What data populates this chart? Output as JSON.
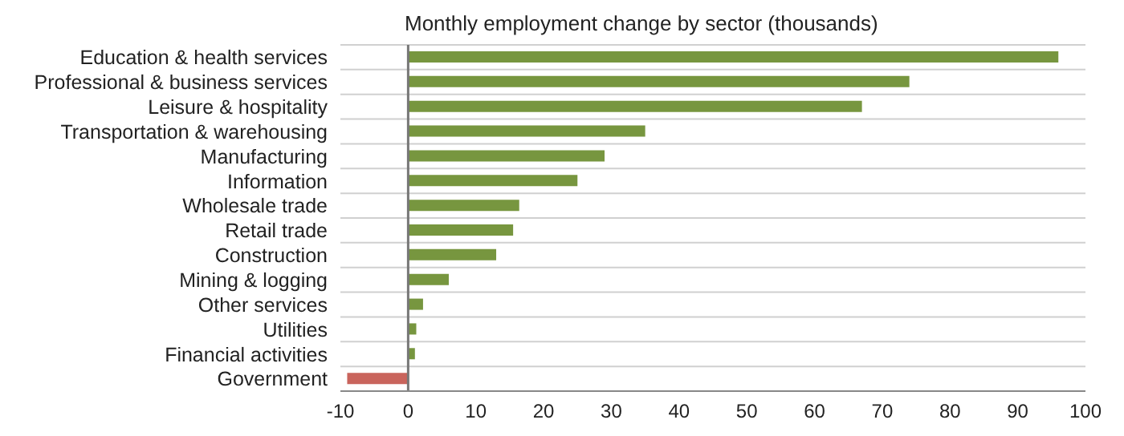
{
  "chart_data": {
    "type": "bar",
    "orientation": "horizontal",
    "title": "Monthly employment change by sector (thousands)",
    "categories": [
      "Education & health services",
      "Professional & business services",
      "Leisure & hospitality",
      "Transportation & warehousing",
      "Manufacturing",
      "Information",
      "Wholesale trade",
      "Retail trade",
      "Construction",
      "Mining & logging",
      "Other services",
      "Utilities",
      "Financial activities",
      "Government"
    ],
    "values": [
      96,
      74,
      67,
      35,
      29,
      25,
      16.4,
      15.5,
      13,
      6,
      2.2,
      1.2,
      1,
      -9
    ],
    "colors": [
      "#77963f",
      "#77963f",
      "#77963f",
      "#77963f",
      "#77963f",
      "#77963f",
      "#77963f",
      "#77963f",
      "#77963f",
      "#77963f",
      "#77963f",
      "#77963f",
      "#77963f",
      "#c9645c"
    ],
    "xlim": [
      -10,
      100
    ],
    "xticks": [
      -10,
      0,
      10,
      20,
      30,
      40,
      50,
      60,
      70,
      80,
      90,
      100
    ],
    "grid": "y",
    "legend": false
  }
}
